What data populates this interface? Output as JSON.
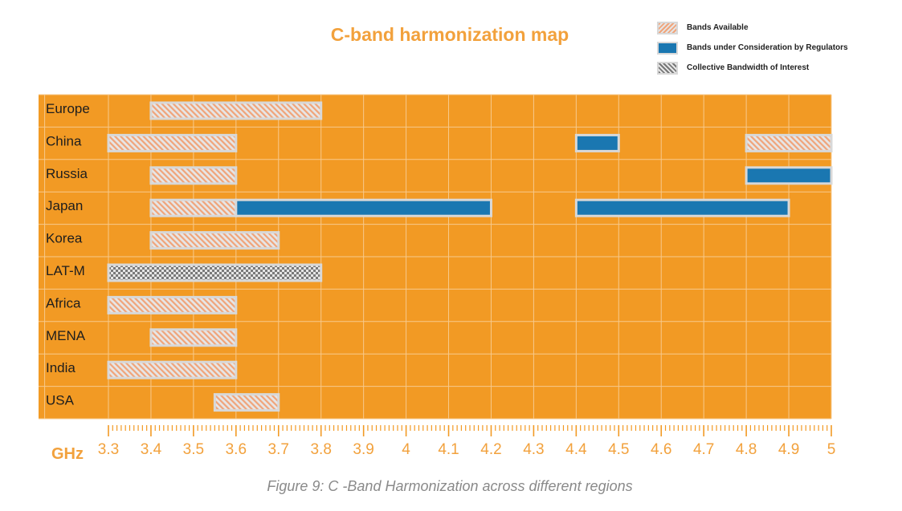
{
  "chart_data": {
    "type": "bar",
    "title": "C-band harmonization map",
    "caption": "Figure 9: C -Band Harmonization across different regions",
    "xlabel": "GHz",
    "x_ticks": [
      "3.3",
      "3.4",
      "3.5",
      "3.6",
      "3.7",
      "3.8",
      "3.9",
      "4",
      "4.1",
      "4.2",
      "4.3",
      "4.4",
      "4.5",
      "4.6",
      "4.7",
      "4.8",
      "4.9",
      "5"
    ],
    "xlim": [
      3.15,
      5.0
    ],
    "categories": [
      "Europe",
      "China",
      "Russia",
      "Japan",
      "Korea",
      "LAT-M",
      "Africa",
      "MENA",
      "India",
      "USA"
    ],
    "legend": [
      {
        "key": "available",
        "label": "Bands Available"
      },
      {
        "key": "regulators",
        "label": "Bands under Consideration by Regulators"
      },
      {
        "key": "collective",
        "label": "Collective Bandwidth of Interest"
      }
    ],
    "bands": [
      {
        "region": "Europe",
        "type": "available",
        "start": 3.4,
        "end": 3.8
      },
      {
        "region": "China",
        "type": "available",
        "start": 3.3,
        "end": 3.6
      },
      {
        "region": "China",
        "type": "regulators",
        "start": 4.4,
        "end": 4.5
      },
      {
        "region": "China",
        "type": "available",
        "start": 4.8,
        "end": 5.0
      },
      {
        "region": "Russia",
        "type": "available",
        "start": 3.4,
        "end": 3.6
      },
      {
        "region": "Russia",
        "type": "regulators",
        "start": 4.8,
        "end": 5.0
      },
      {
        "region": "Japan",
        "type": "available",
        "start": 3.4,
        "end": 3.6
      },
      {
        "region": "Japan",
        "type": "regulators",
        "start": 3.6,
        "end": 4.2
      },
      {
        "region": "Japan",
        "type": "regulators",
        "start": 4.4,
        "end": 4.9
      },
      {
        "region": "Korea",
        "type": "available",
        "start": 3.4,
        "end": 3.7
      },
      {
        "region": "LAT-M",
        "type": "collective",
        "start": 3.3,
        "end": 3.8
      },
      {
        "region": "Africa",
        "type": "available",
        "start": 3.3,
        "end": 3.6
      },
      {
        "region": "MENA",
        "type": "available",
        "start": 3.4,
        "end": 3.6
      },
      {
        "region": "India",
        "type": "available",
        "start": 3.3,
        "end": 3.6
      },
      {
        "region": "USA",
        "type": "available",
        "start": 3.55,
        "end": 3.7
      }
    ],
    "colors": {
      "background": "#f29a24",
      "grid": "#f7c98c",
      "title": "#f2a13c",
      "available_stripe": "#f0a47a",
      "regulators": "#1a77b1",
      "collective_dark": "#777777",
      "band_border": "#d8d8d8"
    },
    "grid": true,
    "legend_position": "top-right"
  }
}
